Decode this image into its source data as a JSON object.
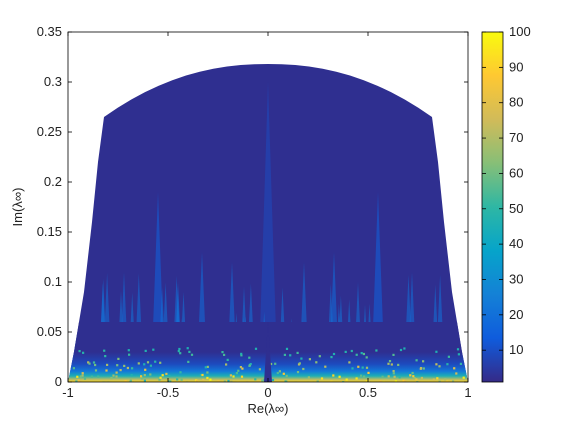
{
  "chart_data": {
    "type": "heatmap",
    "title": "",
    "xlabel": "Re(λ∞)",
    "ylabel": "Im(λ∞)",
    "x_ticks": [
      "-1",
      "-0.5",
      "0",
      "0.5",
      "1"
    ],
    "y_ticks": [
      "0",
      "0.05",
      "0.1",
      "0.15",
      "0.2",
      "0.25",
      "0.3",
      "0.35"
    ],
    "xlim": [
      -1,
      1
    ],
    "ylim": [
      0,
      0.35
    ],
    "grid": false,
    "colormap": "parula",
    "colorbar": {
      "range": [
        1,
        100
      ],
      "ticks": [
        "10",
        "20",
        "30",
        "40",
        "50",
        "60",
        "70",
        "80",
        "90",
        "100"
      ]
    },
    "region_boundary": {
      "top_flat_y": 0.318,
      "top_flat_x": [
        -0.05,
        0.05
      ],
      "shoulder": [
        [
          -0.82,
          0.265
        ],
        [
          0.82,
          0.265
        ]
      ],
      "base": [
        [
          -1,
          0
        ],
        [
          1,
          0
        ]
      ]
    },
    "intensity_profile": {
      "high_near_real_axis": 85,
      "low_upper_region": 2
    }
  },
  "colors": {
    "background": "#ffffff",
    "region_fill": "#2f2f90",
    "colormap_stops": [
      "#352a87",
      "#0f5cdd",
      "#1481d6",
      "#06a4ca",
      "#2eb7a4",
      "#87bf77",
      "#d1bb59",
      "#fec832",
      "#f9fb0e"
    ]
  }
}
